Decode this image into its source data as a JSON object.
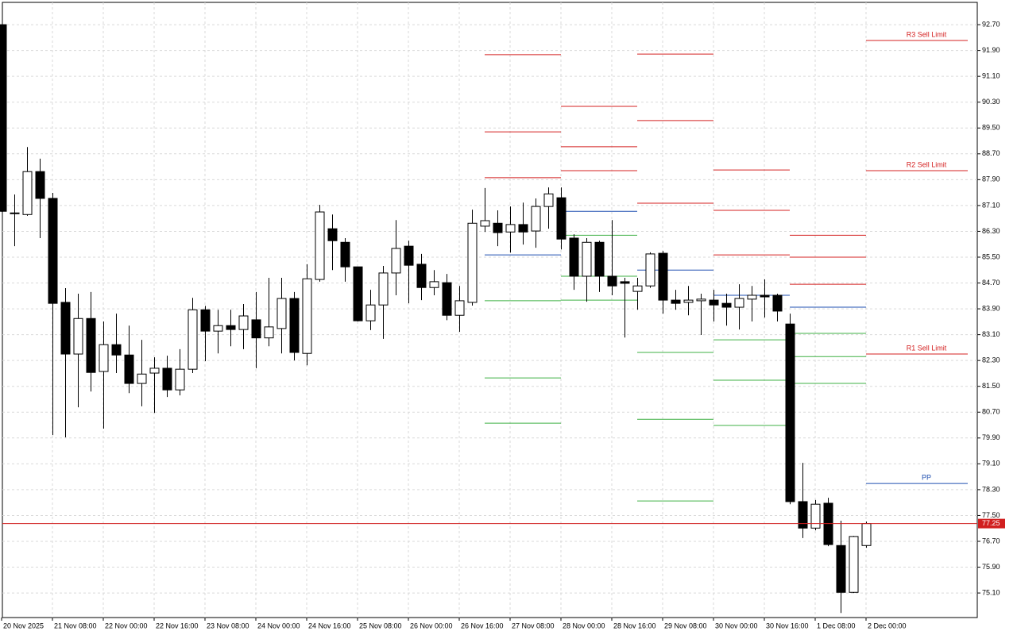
{
  "chart_data": {
    "type": "candlestick",
    "categories": [
      "20 Nov 2025",
      null,
      null,
      null,
      "21 Nov 08:00",
      null,
      null,
      null,
      "22 Nov 00:00",
      null,
      null,
      null,
      "22 Nov 16:00",
      null,
      null,
      null,
      "23 Nov 08:00",
      null,
      null,
      null,
      "24 Nov 00:00",
      null,
      null,
      null,
      "24 Nov 16:00",
      null,
      null,
      null,
      "25 Nov 08:00",
      null,
      null,
      null,
      "26 Nov 00:00",
      null,
      null,
      null,
      "26 Nov 16:00",
      null,
      null,
      null,
      "27 Nov 08:00",
      null,
      null,
      null,
      "28 Nov 00:00",
      null,
      null,
      null,
      "28 Nov 16:00",
      null,
      null,
      null,
      "29 Nov 08:00",
      null,
      null,
      null,
      "30 Nov 00:00",
      null,
      null,
      null,
      "30 Nov 16:00",
      null,
      null,
      null,
      "1 Dec 08:00",
      null,
      null,
      null,
      "2 Dec 00:00"
    ],
    "open": [
      92.7,
      86.87,
      86.82,
      88.15,
      87.32,
      84.1,
      82.5,
      83.6,
      81.96,
      82.79,
      82.47,
      81.59,
      81.91,
      82.06,
      81.39,
      82.03,
      83.87,
      83.21,
      83.38,
      83.26,
      83.56,
      83.0,
      83.29,
      84.22,
      82.52,
      84.81,
      86.38,
      85.96,
      85.2,
      83.53,
      84.02,
      85.01,
      85.84,
      85.28,
      84.56,
      84.71,
      83.7,
      84.1,
      86.46,
      86.55,
      86.28,
      86.51,
      86.31,
      87.07,
      87.34,
      86.09,
      84.91,
      85.96,
      84.91,
      84.74,
      84.44,
      84.61,
      85.62,
      84.17,
      84.1,
      84.15,
      84.17,
      84.07,
      83.95,
      84.2,
      84.32,
      84.32,
      83.43,
      77.93,
      77.11,
      77.88,
      76.57,
      75.12,
      76.57
    ],
    "high": [
      92.7,
      87.44,
      88.91,
      88.55,
      87.49,
      84.54,
      84.37,
      84.42,
      83.51,
      83.75,
      83.38,
      82.94,
      82.4,
      82.45,
      82.65,
      84.24,
      83.99,
      83.87,
      83.87,
      84.05,
      84.42,
      84.86,
      84.86,
      84.42,
      85.28,
      87.12,
      86.82,
      86.09,
      85.2,
      84.49,
      85.23,
      86.65,
      86.01,
      85.6,
      85.1,
      84.98,
      84.61,
      86.97,
      87.64,
      86.95,
      87.07,
      87.19,
      87.32,
      87.66,
      87.66,
      86.21,
      86.09,
      86.01,
      86.65,
      84.86,
      84.86,
      85.65,
      85.69,
      84.49,
      84.61,
      84.37,
      84.49,
      84.37,
      84.66,
      84.61,
      84.81,
      84.37,
      83.75,
      79.13,
      77.98,
      78.05,
      77.34,
      76.87,
      77.31
    ],
    "low": [
      86.9,
      85.84,
      86.78,
      86.09,
      79.99,
      79.92,
      80.85,
      81.34,
      80.19,
      81.91,
      81.29,
      80.88,
      80.68,
      81.17,
      81.22,
      81.91,
      82.28,
      82.52,
      82.74,
      82.65,
      82.06,
      82.74,
      82.52,
      82.3,
      82.15,
      84.74,
      85.1,
      84.74,
      83.51,
      83.24,
      82.97,
      84.32,
      84.07,
      84.17,
      84.32,
      83.55,
      83.19,
      84.0,
      86.28,
      85.84,
      85.64,
      85.89,
      85.79,
      86.38,
      85.74,
      84.49,
      84.12,
      84.42,
      84.32,
      83.01,
      83.87,
      84.55,
      83.75,
      83.87,
      83.7,
      83.09,
      83.51,
      83.38,
      83.26,
      83.51,
      83.63,
      83.51,
      77.85,
      76.8,
      77.04,
      76.55,
      74.48,
      75.1,
      76.5
    ],
    "close": [
      86.92,
      86.85,
      88.15,
      87.32,
      84.07,
      82.5,
      83.6,
      81.93,
      82.79,
      82.47,
      81.59,
      81.88,
      82.06,
      81.39,
      82.03,
      83.87,
      83.21,
      83.38,
      83.26,
      83.68,
      83.0,
      83.34,
      84.22,
      82.55,
      84.83,
      86.9,
      86.01,
      85.2,
      83.53,
      84.02,
      85.01,
      85.77,
      85.25,
      84.56,
      84.74,
      83.7,
      84.15,
      86.55,
      86.63,
      86.26,
      86.51,
      86.28,
      87.07,
      87.46,
      86.06,
      84.91,
      85.96,
      84.91,
      84.61,
      84.69,
      84.61,
      85.6,
      84.17,
      84.07,
      84.17,
      84.2,
      84.02,
      83.95,
      84.22,
      84.32,
      84.27,
      83.83,
      77.93,
      77.11,
      77.85,
      76.6,
      75.12,
      76.85,
      77.25
    ],
    "up_color": "#ffffff",
    "down_color": "#000000",
    "outline_color": "#000000",
    "ylim": [
      74.34,
      93.39
    ],
    "yticks": [
      {
        "value": 92.7,
        "label": "92.70"
      },
      {
        "value": 91.9,
        "label": "91.90"
      },
      {
        "value": 91.1,
        "label": "91.10"
      },
      {
        "value": 90.3,
        "label": "90.30"
      },
      {
        "value": 89.5,
        "label": "89.50"
      },
      {
        "value": 88.7,
        "label": "88.70"
      },
      {
        "value": 87.9,
        "label": "87.90"
      },
      {
        "value": 87.1,
        "label": "87.10"
      },
      {
        "value": 86.3,
        "label": "86.30"
      },
      {
        "value": 85.5,
        "label": "85.50"
      },
      {
        "value": 84.7,
        "label": "84.70"
      },
      {
        "value": 83.9,
        "label": "83.90"
      },
      {
        "value": 83.1,
        "label": "83.10"
      },
      {
        "value": 82.3,
        "label": "82.30"
      },
      {
        "value": 81.5,
        "label": "81.50"
      },
      {
        "value": 80.7,
        "label": "80.70"
      },
      {
        "value": 79.9,
        "label": "79.90"
      },
      {
        "value": 79.1,
        "label": "79.10"
      },
      {
        "value": 78.3,
        "label": "78.30"
      },
      {
        "value": 77.5,
        "label": "77.50"
      },
      {
        "value": 76.7,
        "label": "76.70"
      },
      {
        "value": 75.9,
        "label": "75.90"
      },
      {
        "value": 75.1,
        "label": "75.10"
      }
    ],
    "grid": true,
    "last_price": 77.25,
    "last_price_color": "#d11f1f",
    "resistance_color": "#d42020",
    "pivot_color": "#1f4fb0",
    "support_color": "#3fb044",
    "levels": [
      {
        "start": 38,
        "end": 44,
        "resistance": [
          91.77,
          89.38,
          87.96
        ],
        "pivot": 85.57,
        "support": [
          84.15,
          81.76,
          80.36
        ]
      },
      {
        "start": 44,
        "end": 50,
        "resistance": [
          90.17,
          88.92,
          88.18
        ],
        "pivot": 86.92,
        "support": [
          86.18,
          84.91,
          84.17
        ]
      },
      {
        "start": 50,
        "end": 56,
        "resistance": [
          91.79,
          89.73,
          87.17
        ],
        "pivot": 85.1,
        "support": [
          82.55,
          80.48,
          77.95
        ]
      },
      {
        "start": 56,
        "end": 62,
        "resistance": [
          88.2,
          86.95,
          85.57
        ],
        "pivot": 84.32,
        "support": [
          82.94,
          81.69,
          80.29
        ]
      },
      {
        "start": 62,
        "end": 68,
        "resistance": [
          86.18,
          85.5,
          84.66
        ],
        "pivot": 83.95,
        "support": [
          83.14,
          82.42,
          81.59
        ]
      },
      {
        "start": 68,
        "end": 76,
        "resistance": [
          92.21,
          88.18,
          82.5
        ],
        "pivot": 78.49,
        "resistance_labels": [
          "R3 Sell Limit",
          "R2 Sell Limit",
          "R1 Sell Limit"
        ],
        "pivot_label": "PP"
      }
    ]
  }
}
